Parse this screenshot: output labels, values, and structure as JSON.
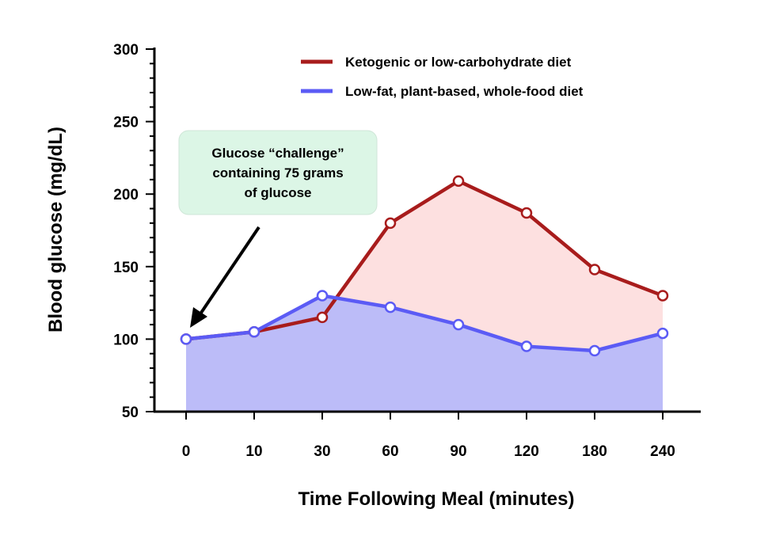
{
  "chart_data": {
    "type": "line",
    "title": "",
    "xlabel": "Time Following Meal (minutes)",
    "ylabel": "Blood glucose (mg/dL)",
    "categories": [
      "0",
      "10",
      "30",
      "60",
      "90",
      "120",
      "180",
      "240"
    ],
    "ylim": [
      50,
      300
    ],
    "yticks": [
      "50",
      "100",
      "150",
      "200",
      "250",
      "300"
    ],
    "grid": false,
    "legend_position": "top-right",
    "series": [
      {
        "name": "Ketogenic or low-carbohydrate diet",
        "color": "#a81c1c",
        "fill": "#fde0e0",
        "values": [
          100,
          105,
          115,
          180,
          209,
          187,
          148,
          130
        ]
      },
      {
        "name": "Low-fat, plant-based, whole-food diet",
        "color": "#5b5bf5",
        "fill": "#bcbcf8",
        "values": [
          100,
          105,
          130,
          122,
          110,
          95,
          92,
          104
        ]
      }
    ],
    "annotation": {
      "lines": [
        "Glucose “challenge”",
        "containing 75 grams",
        "of glucose"
      ],
      "fill": "#dcf6e6",
      "points_to_category": "0"
    }
  }
}
